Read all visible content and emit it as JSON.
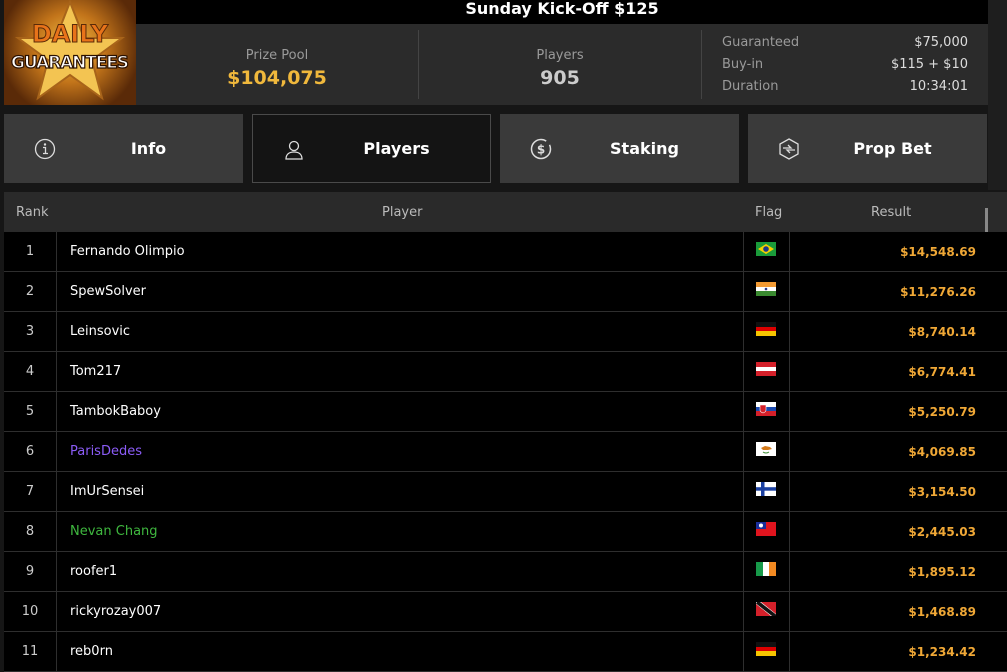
{
  "logo": {
    "text": "DAILY GUARANTEES"
  },
  "title": "Sunday Kick-Off $125",
  "stats": {
    "prize_pool_label": "Prize Pool",
    "prize_pool": "$104,075",
    "players_label": "Players",
    "players": "905",
    "guaranteed_label": "Guaranteed",
    "guaranteed": "$75,000",
    "buyin_label": "Buy-in",
    "buyin": "$115 + $10",
    "duration_label": "Duration",
    "duration": "10:34:01"
  },
  "tabs": [
    {
      "label": "Info",
      "icon": "info-icon"
    },
    {
      "label": "Players",
      "icon": "user-icon",
      "active": true
    },
    {
      "label": "Staking",
      "icon": "dollar-circle-icon"
    },
    {
      "label": "Prop Bet",
      "icon": "prop-bet-icon"
    }
  ],
  "table": {
    "headers": [
      "Rank",
      "Player",
      "Flag",
      "Result"
    ],
    "rows": [
      {
        "rank": "1",
        "player": "Fernando Olimpio",
        "flag": "BR",
        "result": "$14,548.69",
        "color": "#ffffff"
      },
      {
        "rank": "2",
        "player": "SpewSolver",
        "flag": "IN",
        "result": "$11,276.26",
        "color": "#ffffff"
      },
      {
        "rank": "3",
        "player": "Leinsovic",
        "flag": "DE",
        "result": "$8,740.14",
        "color": "#ffffff"
      },
      {
        "rank": "4",
        "player": "Tom217",
        "flag": "AT",
        "result": "$6,774.41",
        "color": "#ffffff"
      },
      {
        "rank": "5",
        "player": "TambokBaboy",
        "flag": "SK",
        "result": "$5,250.79",
        "color": "#ffffff"
      },
      {
        "rank": "6",
        "player": "ParisDedes",
        "flag": "CY",
        "result": "$4,069.85",
        "color": "#8b5cf6"
      },
      {
        "rank": "7",
        "player": "ImUrSensei",
        "flag": "FI",
        "result": "$3,154.50",
        "color": "#ffffff"
      },
      {
        "rank": "8",
        "player": "Nevan Chang",
        "flag": "TW",
        "result": "$2,445.03",
        "color": "#3fb83f"
      },
      {
        "rank": "9",
        "player": "roofer1",
        "flag": "IE",
        "result": "$1,895.12",
        "color": "#ffffff"
      },
      {
        "rank": "10",
        "player": "rickyrozay007",
        "flag": "TT",
        "result": "$1,468.89",
        "color": "#ffffff"
      },
      {
        "rank": "11",
        "player": "reb0rn",
        "flag": "DE",
        "result": "$1,234.42",
        "color": "#ffffff"
      }
    ]
  },
  "colors": {
    "accent": "#f0b83c",
    "result": "#f0a836"
  }
}
